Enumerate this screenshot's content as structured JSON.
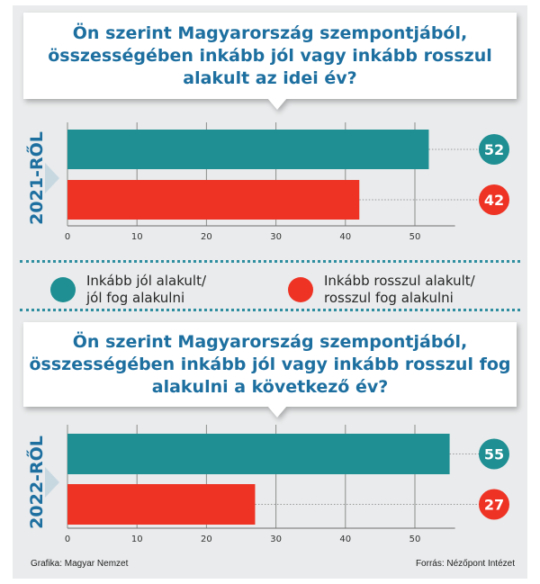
{
  "chart_data": [
    {
      "type": "bar",
      "question_lines": [
        "Ön szerint Magyarország szempontjából,",
        "összességében inkább jól vagy inkább rosszul",
        "alakult az idei év?"
      ],
      "period_label": "2021-RŐL",
      "orientation": "horizontal",
      "categories": [
        "Inkább jól alakult/ jól fog alakulni",
        "Inkább rosszul alakult/ rosszul fog alakulni"
      ],
      "values": [
        52,
        42
      ],
      "colors": [
        "#1f8f93",
        "#ee3325"
      ],
      "xlim": [
        0,
        55
      ],
      "xticks": [
        0,
        10,
        20,
        30,
        40,
        50
      ],
      "grid": "vertical"
    },
    {
      "type": "bar",
      "question_lines": [
        "Ön szerint Magyarország szempontjából,",
        "összességében inkább jól vagy inkább rosszul fog",
        "alakulni a következő év?"
      ],
      "period_label": "2022-RŐL",
      "orientation": "horizontal",
      "categories": [
        "Inkább jól alakult/ jól fog alakulni",
        "Inkább rosszul alakult/ rosszul fog alakulni"
      ],
      "values": [
        55,
        27
      ],
      "colors": [
        "#1f8f93",
        "#ee3325"
      ],
      "xlim": [
        0,
        55
      ],
      "xticks": [
        0,
        10,
        20,
        30,
        40,
        50
      ],
      "grid": "vertical"
    }
  ],
  "legend": {
    "placement": "between charts",
    "items": [
      {
        "lines": [
          "Inkább jól alakult/",
          "jól fog alakulni"
        ],
        "color": "#1f8f93"
      },
      {
        "lines": [
          "Inkább rosszul alakult/",
          "rosszul fog alakulni"
        ],
        "color": "#ee3325"
      }
    ]
  },
  "footer": {
    "left": "Grafika: Magyar Nemzet",
    "right": "Forrás: Nézőpont Intézet"
  }
}
